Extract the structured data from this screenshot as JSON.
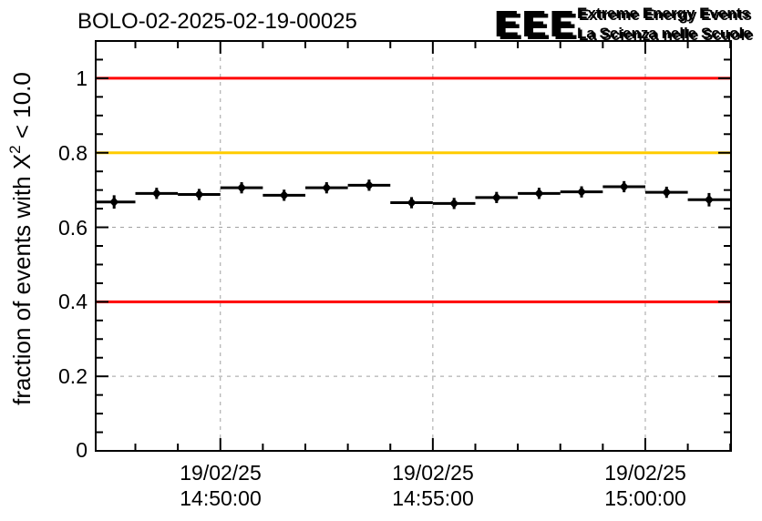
{
  "header": {
    "logo": {
      "acronym": "EEE",
      "line1": "Extreme Energy Events",
      "line2": "La Scienza nelle Scuole",
      "letter_color": "#2222cc",
      "text_color": "#1a1ae0",
      "shadow_color": "#c4c4ce"
    }
  },
  "colors": {
    "background": "#ffffff",
    "axis": "#000000",
    "grid": "#a0a0a0",
    "marker": "#000000",
    "limit_red": "#ff0000",
    "warn_orange": "#ffcc00"
  },
  "chart_data": {
    "type": "scatter",
    "subtype": "errorbar-time-series",
    "title": "BOLO-02-2025-02-19-00025",
    "xlabel": "",
    "ylabel": "fraction of events with X2 < 10.0",
    "ylabel_parts": {
      "pre": "fraction of events with X",
      "sup": "2",
      "post": " < 10.0"
    },
    "ylim": [
      0,
      1.1
    ],
    "grid": true,
    "legend": "none",
    "y_major_ticks": [
      0,
      0.2,
      0.4,
      0.6,
      0.8,
      1.0
    ],
    "y_tick_labels": [
      "0",
      "0.2",
      "0.4",
      "0.6",
      "0.8",
      "1"
    ],
    "y_minor_step": 0.05,
    "x_range": {
      "date": "19/02/25",
      "start": "14:47:04",
      "end": "15:02:01"
    },
    "x_minor_step_s": 60,
    "x_major_ticks": [
      {
        "date": "19/02/25",
        "time": "14:50:00"
      },
      {
        "date": "19/02/25",
        "time": "14:55:00"
      },
      {
        "date": "19/02/25",
        "time": "15:00:00"
      }
    ],
    "ref_lines": [
      {
        "y": 1.0,
        "color": "#ff0000"
      },
      {
        "y": 0.8,
        "color": "#ffcc00"
      },
      {
        "y": 0.4,
        "color": "#ff0000"
      }
    ],
    "bin_width_s": 60,
    "series": [
      {
        "name": "fraction of events with chi2 < 10",
        "marker": "diamond",
        "color": "#000000",
        "points": [
          {
            "time": "14:47:30",
            "value": 0.668,
            "err": 0.018
          },
          {
            "time": "14:48:30",
            "value": 0.691,
            "err": 0.015
          },
          {
            "time": "14:49:30",
            "value": 0.688,
            "err": 0.015
          },
          {
            "time": "14:50:30",
            "value": 0.706,
            "err": 0.015
          },
          {
            "time": "14:51:30",
            "value": 0.686,
            "err": 0.015
          },
          {
            "time": "14:52:30",
            "value": 0.706,
            "err": 0.015
          },
          {
            "time": "14:53:30",
            "value": 0.713,
            "err": 0.015
          },
          {
            "time": "14:54:30",
            "value": 0.666,
            "err": 0.015
          },
          {
            "time": "14:55:30",
            "value": 0.664,
            "err": 0.015
          },
          {
            "time": "14:56:30",
            "value": 0.68,
            "err": 0.015
          },
          {
            "time": "14:57:30",
            "value": 0.691,
            "err": 0.015
          },
          {
            "time": "14:58:30",
            "value": 0.695,
            "err": 0.015
          },
          {
            "time": "14:59:30",
            "value": 0.709,
            "err": 0.015
          },
          {
            "time": "15:00:30",
            "value": 0.694,
            "err": 0.015
          },
          {
            "time": "15:01:30",
            "value": 0.674,
            "err": 0.018
          }
        ]
      }
    ]
  }
}
